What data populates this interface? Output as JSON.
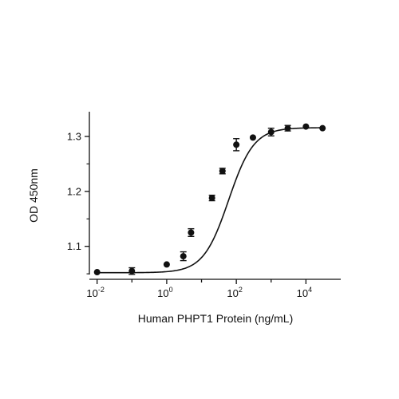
{
  "chart_data": {
    "type": "scatter",
    "title": "",
    "xlabel": "Human PHPT1 Protein (ng/mL)",
    "ylabel": "OD 450nm",
    "xscale": "log",
    "xlim": [
      0.006,
      100000
    ],
    "ylim": [
      1.04,
      1.345
    ],
    "grid": false,
    "legend": "none",
    "x_ticks": [
      {
        "base": "10",
        "exp": "-2",
        "value": 0.01
      },
      {
        "base": "10",
        "exp": "0",
        "value": 1
      },
      {
        "base": "10",
        "exp": "2",
        "value": 100
      },
      {
        "base": "10",
        "exp": "4",
        "value": 10000
      }
    ],
    "y_ticks": [
      {
        "label": "1.1",
        "value": 1.1
      },
      {
        "label": "1.2",
        "value": 1.2
      },
      {
        "label": "1.3",
        "value": 1.3
      }
    ],
    "series": [
      {
        "x": [
          0.01,
          0.1,
          1,
          3,
          5,
          20,
          40,
          100,
          300,
          1000,
          3000,
          10000,
          30000
        ],
        "y": [
          1.053,
          1.055,
          1.067,
          1.082,
          1.125,
          1.188,
          1.237,
          1.285,
          1.298,
          1.308,
          1.315,
          1.318,
          1.315
        ],
        "error": [
          0,
          0.006,
          0,
          0.008,
          0.007,
          0.005,
          0.005,
          0.011,
          0,
          0.007,
          0.005,
          0,
          0
        ]
      }
    ],
    "fit_curve": {
      "bottom": 1.052,
      "top": 1.316,
      "ec50": 60,
      "hill": 1.2
    },
    "colors": {
      "marks": "#111111",
      "background": "#ffffff"
    }
  }
}
